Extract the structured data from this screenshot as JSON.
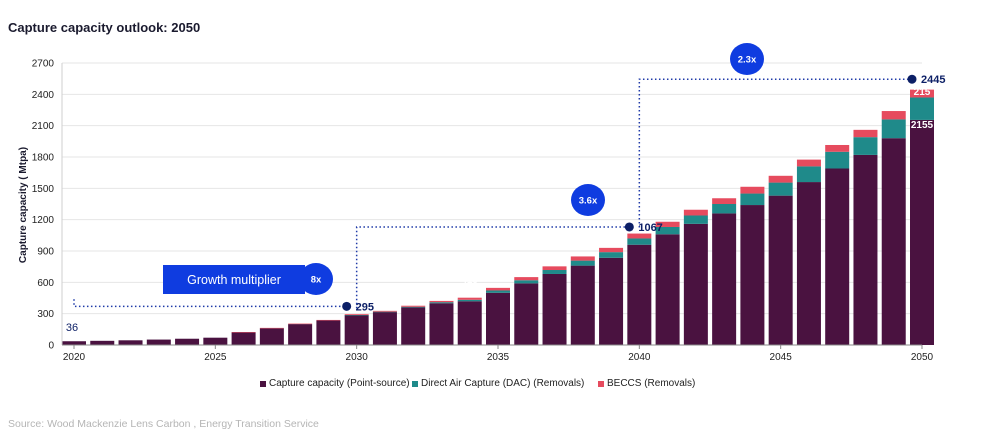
{
  "title": "Capture capacity outlook: 2050",
  "source": "Source: Wood Mackenzie Lens Carbon , Energy Transition Service",
  "growth_label": "Growth multiplier",
  "colors": {
    "point_source": "#4a1240",
    "dac": "#1f8a8a",
    "beccs": "#e64b5e",
    "badge": "#0f3ce0",
    "callout": "#0c1f66"
  },
  "chart_data": {
    "type": "bar",
    "stacked": true,
    "ylabel": "Capture capacity ( Mtpa)",
    "ylim": [
      0,
      2700
    ],
    "yticks": [
      0,
      300,
      600,
      900,
      1200,
      1500,
      1800,
      2100,
      2400,
      2700
    ],
    "xticks": [
      "2020",
      "2025",
      "2030",
      "2035",
      "2040",
      "2045",
      "2050"
    ],
    "categories": [
      "2020",
      "2021",
      "2022",
      "2023",
      "2024",
      "2025",
      "2026",
      "2027",
      "2028",
      "2029",
      "2030",
      "2031",
      "2032",
      "2033",
      "2034",
      "2035",
      "2036",
      "2037",
      "2038",
      "2039",
      "2040",
      "2041",
      "2042",
      "2043",
      "2044",
      "2045",
      "2046",
      "2047",
      "2048",
      "2049",
      "2050"
    ],
    "series": [
      {
        "name": "Capture capacity (Point-source)",
        "values": [
          36,
          40,
          45,
          52,
          60,
          70,
          120,
          160,
          200,
          235,
          285,
          315,
          360,
          400,
          419,
          500,
          590,
          680,
          760,
          835,
          960,
          1060,
          1160,
          1260,
          1340,
          1430,
          1560,
          1690,
          1820,
          1980,
          2155
        ]
      },
      {
        "name": "Direct Air Capture (DAC) (Removals)",
        "values": [
          0,
          0,
          0,
          0,
          0,
          0,
          0,
          0,
          0,
          0,
          2,
          4,
          6,
          10,
          14,
          22,
          30,
          38,
          48,
          54,
          60,
          70,
          80,
          90,
          110,
          125,
          150,
          160,
          170,
          180,
          215
        ]
      },
      {
        "name": "BECCS (Removals)",
        "values": [
          0,
          0,
          0,
          0,
          0,
          0,
          4,
          4,
          5,
          5,
          8,
          8,
          10,
          12,
          20,
          25,
          30,
          35,
          40,
          41,
          47,
          50,
          55,
          55,
          65,
          65,
          65,
          65,
          70,
          80,
          75
        ]
      }
    ],
    "labels": {
      "v2020": "36",
      "v2030": "295",
      "v2034": "419",
      "v2040": "1067",
      "v2050": "2445",
      "v2050_dac": "215",
      "v2050_ps": "2155"
    },
    "multipliers": [
      "8x",
      "3.6x",
      "2.3x"
    ]
  }
}
